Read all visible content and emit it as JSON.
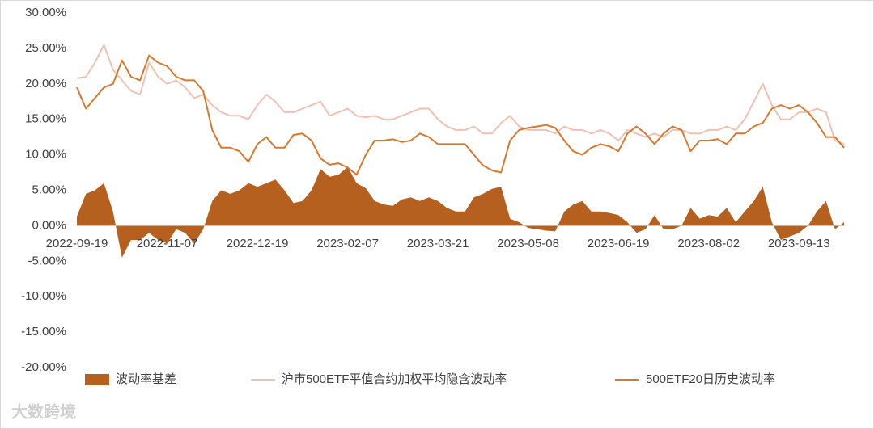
{
  "chart_data": {
    "type": "line",
    "ylim": [
      -20,
      30
    ],
    "yticks": [
      {
        "value": -20,
        "label": "-20.00%"
      },
      {
        "value": -15,
        "label": "-15.00%"
      },
      {
        "value": -10,
        "label": "-10.00%"
      },
      {
        "value": -5,
        "label": "-5.00%"
      },
      {
        "value": 0,
        "label": "0.00%"
      },
      {
        "value": 5,
        "label": "5.00%"
      },
      {
        "value": 10,
        "label": "10.00%"
      },
      {
        "value": 15,
        "label": "15.00%"
      },
      {
        "value": 20,
        "label": "20.00%"
      },
      {
        "value": 25,
        "label": "25.00%"
      },
      {
        "value": 30,
        "label": "30.00%"
      }
    ],
    "categories": [
      "2022-09-19",
      null,
      null,
      null,
      null,
      null,
      null,
      null,
      null,
      null,
      "2022-11-07",
      null,
      null,
      null,
      null,
      null,
      null,
      null,
      null,
      null,
      "2022-12-19",
      null,
      null,
      null,
      null,
      null,
      null,
      null,
      null,
      null,
      "2023-02-07",
      null,
      null,
      null,
      null,
      null,
      null,
      null,
      null,
      null,
      "2023-03-21",
      null,
      null,
      null,
      null,
      null,
      null,
      null,
      null,
      null,
      "2023-05-08",
      null,
      null,
      null,
      null,
      null,
      null,
      null,
      null,
      null,
      "2023-06-19",
      null,
      null,
      null,
      null,
      null,
      null,
      null,
      null,
      null,
      "2023-08-02",
      null,
      null,
      null,
      null,
      null,
      null,
      null,
      null,
      null,
      "2023-09-13",
      null,
      null,
      null,
      null,
      null
    ],
    "series": [
      {
        "name": "波动率基差",
        "type": "area",
        "color": "#b5601f",
        "values": [
          1.3,
          4.5,
          5,
          6,
          2,
          -4.5,
          -2,
          -2,
          -1,
          -2,
          -2.5,
          -0.5,
          -1,
          -2.5,
          -0.5,
          3.5,
          5,
          4.5,
          5,
          6,
          5.5,
          6,
          6.5,
          5,
          3.2,
          3.5,
          5,
          8,
          6.9,
          7.2,
          8.3,
          6,
          5.3,
          3.5,
          3,
          2.8,
          3.7,
          4,
          3.5,
          4,
          3.5,
          2.5,
          2,
          2,
          4,
          4.5,
          5.2,
          5.5,
          1,
          0.5,
          -0.3,
          -0.5,
          -0.7,
          -0.8,
          2,
          3,
          3.5,
          2,
          2,
          1.8,
          1.5,
          0.5,
          -1,
          -0.5,
          1.5,
          -0.5,
          -0.5,
          0,
          2.5,
          1,
          1.5,
          1.3,
          2.5,
          0.5,
          2,
          3.5,
          5.5,
          0.5,
          -2,
          -1.5,
          -1,
          0,
          2,
          3.5,
          -0.5,
          0.5
        ]
      },
      {
        "name": "沪市500ETF平值合约加权平均隐含波动率",
        "type": "line",
        "color": "#f2c0b0",
        "values": [
          20.8,
          21,
          23,
          25.5,
          22,
          20.5,
          19,
          18.5,
          23,
          21,
          20,
          20.5,
          19.5,
          18,
          18.5,
          17,
          16,
          15.5,
          15.5,
          15,
          17,
          18.5,
          17.5,
          16,
          16,
          16.5,
          17,
          17.5,
          15.5,
          16,
          16.5,
          15.5,
          15.3,
          15.5,
          15,
          15,
          15.5,
          16,
          16.5,
          16.5,
          15,
          14,
          13.5,
          13.5,
          14,
          13,
          13,
          14.5,
          15.5,
          14,
          13.5,
          13.5,
          13.5,
          13,
          14,
          13.5,
          13.5,
          13,
          13.5,
          13,
          12,
          13.5,
          13,
          12.5,
          13,
          12.5,
          13.5,
          13.5,
          13,
          13,
          13.5,
          13.5,
          14,
          13.5,
          15,
          17.5,
          20,
          17,
          15,
          15,
          16,
          16,
          16.5,
          16,
          12,
          11.5
        ]
      },
      {
        "name": "500ETF20日历史波动率",
        "type": "line",
        "color": "#d9782d",
        "values": [
          19.5,
          16.5,
          18,
          19.5,
          20,
          23.3,
          21,
          20.5,
          24,
          23,
          22.5,
          21,
          20.5,
          20.5,
          19,
          13.5,
          11,
          11,
          10.5,
          9,
          11.5,
          12.5,
          11,
          11,
          12.8,
          13,
          12,
          9.5,
          8.6,
          8.8,
          8.2,
          7.2,
          10,
          12,
          12,
          12.2,
          11.8,
          12,
          13,
          12.5,
          11.5,
          11.5,
          11.5,
          11.5,
          10,
          8.5,
          7.8,
          7.5,
          12,
          13.5,
          13.8,
          14,
          14.2,
          13.8,
          12,
          10.5,
          10,
          11,
          11.5,
          11.2,
          10.5,
          13,
          14,
          13,
          11.5,
          13,
          14,
          13.5,
          10.5,
          12,
          12,
          12.2,
          11.5,
          13,
          13,
          14,
          14.5,
          16.5,
          17,
          16.5,
          17,
          16,
          14.5,
          12.5,
          12.5,
          11
        ]
      }
    ],
    "legend": "bottom",
    "watermark": "大数跨境"
  }
}
